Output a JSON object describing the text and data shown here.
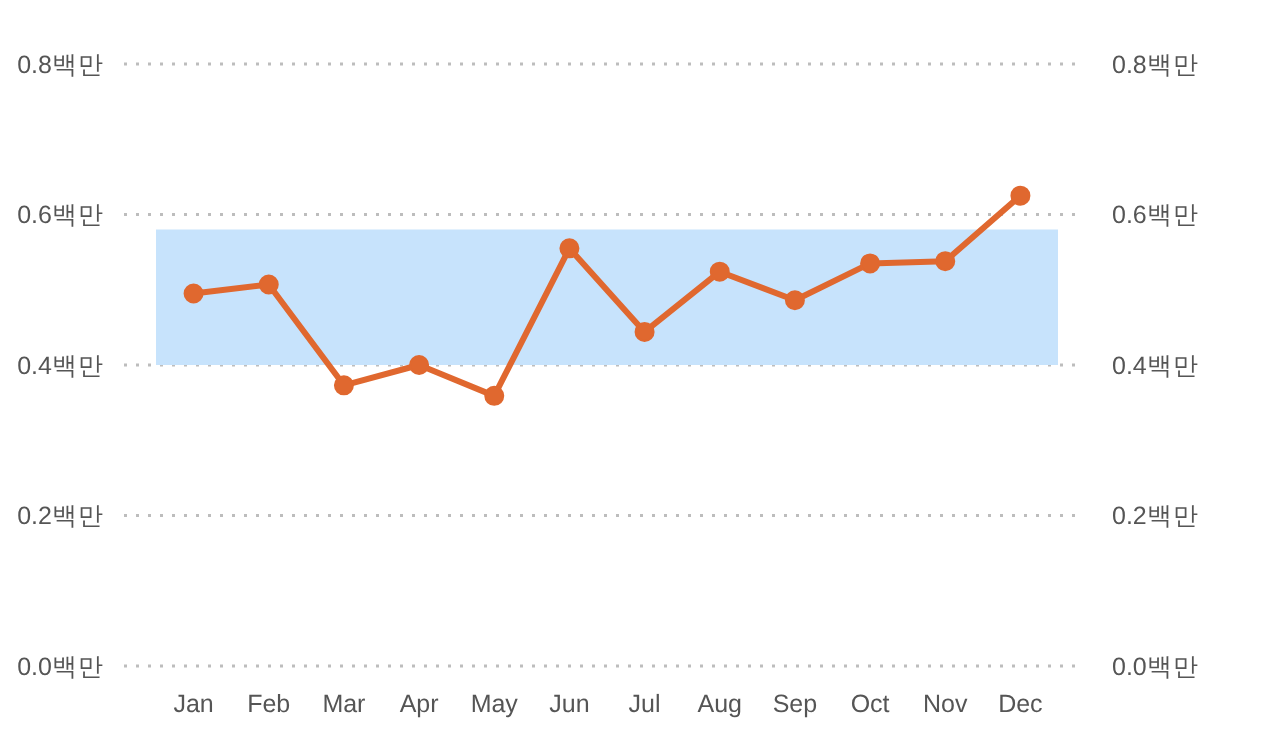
{
  "chart_data": {
    "type": "line",
    "categories": [
      "Jan",
      "Feb",
      "Mar",
      "Apr",
      "May",
      "Jun",
      "Jul",
      "Aug",
      "Sep",
      "Oct",
      "Nov",
      "Dec"
    ],
    "series": [
      {
        "color": "#e0682f",
        "values": [
          0.495,
          0.507,
          0.373,
          0.4,
          0.359,
          0.555,
          0.444,
          0.524,
          0.486,
          0.535,
          0.538,
          0.625
        ]
      }
    ],
    "ylim": [
      0,
      0.8
    ],
    "yticks": [
      {
        "value": 0,
        "label": "0.0백만"
      },
      {
        "value": 0.2,
        "label": "0.2백만"
      },
      {
        "value": 0.4,
        "label": "0.4백만"
      },
      {
        "value": 0.6,
        "label": "0.6백만"
      },
      {
        "value": 0.8,
        "label": "0.8백만"
      }
    ],
    "y2lim": [
      0,
      0.8
    ],
    "y2ticks": [
      {
        "value": 0,
        "label": "0.0백만"
      },
      {
        "value": 0.2,
        "label": "0.2백만"
      },
      {
        "value": 0.4,
        "label": "0.4백만"
      },
      {
        "value": 0.6,
        "label": "0.6백만"
      },
      {
        "value": 0.8,
        "label": "0.8백만"
      }
    ],
    "bands": [
      {
        "axis": "y",
        "from": 0.4,
        "to": 0.58,
        "color": "#c7e3fc"
      }
    ],
    "grid": "y",
    "marker": "circle",
    "line_style": "solid"
  }
}
